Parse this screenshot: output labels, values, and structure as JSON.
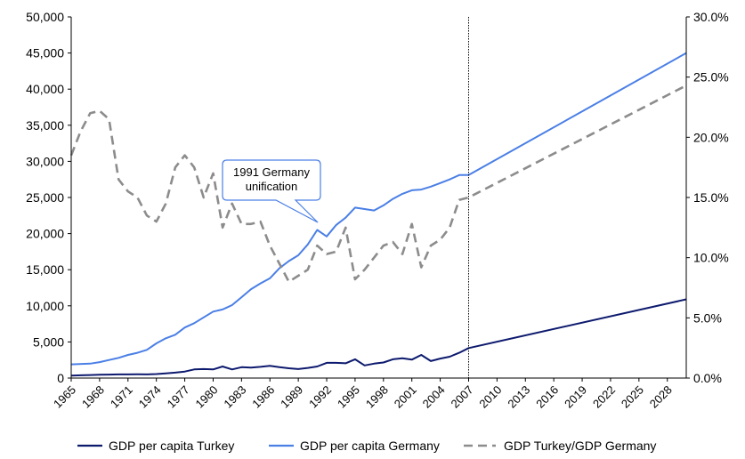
{
  "chart_data": {
    "type": "line",
    "x_ticks": [
      "1965",
      "1968",
      "1971",
      "1974",
      "1977",
      "1980",
      "1983",
      "1986",
      "1989",
      "1992",
      "1995",
      "1998",
      "2001",
      "2004",
      "2007",
      "2010",
      "2013",
      "2016",
      "2019",
      "2022",
      "2025",
      "2028"
    ],
    "x_range": [
      1965,
      2030
    ],
    "y_left": {
      "ticks": [
        "0",
        "5,000",
        "10,000",
        "15,000",
        "20,000",
        "25,000",
        "30,000",
        "35,000",
        "40,000",
        "45,000",
        "50,000"
      ],
      "range": [
        0,
        50000
      ]
    },
    "y_right": {
      "ticks": [
        "0.0%",
        "5.0%",
        "10.0%",
        "15.0%",
        "20.0%",
        "25.0%",
        "30.0%"
      ],
      "range": [
        0,
        30
      ]
    },
    "vertical_line_year": 2007,
    "annotation": {
      "lines": [
        "1991 Germany",
        "unification"
      ],
      "points_to_year": 1991
    },
    "legend_position": "bottom",
    "series": [
      {
        "name": "GDP per capita Turkey",
        "axis": "left",
        "color": "#0d1a6e",
        "style": "solid",
        "x": [
          1965,
          1966,
          1967,
          1968,
          1969,
          1970,
          1971,
          1972,
          1973,
          1974,
          1975,
          1976,
          1977,
          1978,
          1979,
          1980,
          1981,
          1982,
          1983,
          1984,
          1985,
          1986,
          1987,
          1988,
          1989,
          1990,
          1991,
          1992,
          1993,
          1994,
          1995,
          1996,
          1997,
          1998,
          1999,
          2000,
          2001,
          2002,
          2003,
          2004,
          2005,
          2006,
          2007,
          2030
        ],
        "values": [
          350,
          380,
          420,
          450,
          480,
          500,
          500,
          520,
          500,
          550,
          650,
          750,
          900,
          1200,
          1250,
          1200,
          1600,
          1200,
          1500,
          1450,
          1550,
          1700,
          1500,
          1350,
          1250,
          1400,
          1600,
          2100,
          2100,
          2050,
          2600,
          1750,
          2000,
          2150,
          2600,
          2750,
          2550,
          3200,
          2350,
          2700,
          2950,
          3500,
          4150,
          10900
        ]
      },
      {
        "name": "GDP per capita Germany",
        "axis": "left",
        "color": "#4a7fe6",
        "style": "solid",
        "x": [
          1965,
          1967,
          1968,
          1969,
          1970,
          1971,
          1972,
          1973,
          1974,
          1975,
          1976,
          1977,
          1978,
          1979,
          1980,
          1981,
          1982,
          1983,
          1984,
          1985,
          1986,
          1987,
          1988,
          1989,
          1990,
          1991,
          1992,
          1993,
          1994,
          1995,
          1996,
          1997,
          1998,
          1999,
          2000,
          2001,
          2002,
          2003,
          2004,
          2005,
          2006,
          2007,
          2030
        ],
        "values": [
          1900,
          2000,
          2200,
          2500,
          2800,
          3200,
          3500,
          3900,
          4800,
          5500,
          6000,
          7000,
          7600,
          8400,
          9200,
          9500,
          10100,
          11200,
          12300,
          13100,
          13800,
          15200,
          16200,
          17000,
          18500,
          20500,
          19600,
          21200,
          22200,
          23600,
          23400,
          23200,
          23900,
          24800,
          25500,
          26000,
          26100,
          26500,
          27000,
          27500,
          28100,
          28100,
          45000
        ]
      },
      {
        "name": "GDP Turkey/GDP Germany",
        "axis": "right",
        "color": "#8c8c8c",
        "style": "dashed",
        "x": [
          1965,
          1966,
          1967,
          1968,
          1969,
          1970,
          1971,
          1972,
          1973,
          1974,
          1975,
          1976,
          1977,
          1978,
          1979,
          1980,
          1981,
          1982,
          1983,
          1984,
          1985,
          1986,
          1987,
          1988,
          1989,
          1990,
          1991,
          1992,
          1993,
          1994,
          1995,
          1996,
          1997,
          1998,
          1999,
          2000,
          2001,
          2002,
          2003,
          2004,
          2005,
          2006,
          2007,
          2030
        ],
        "values": [
          18.5,
          20.5,
          22.0,
          22.2,
          21.5,
          16.5,
          15.5,
          15.0,
          13.5,
          13.0,
          14.5,
          17.5,
          18.5,
          17.5,
          15.0,
          17.0,
          12.5,
          14.5,
          12.8,
          12.8,
          13.0,
          11.0,
          9.5,
          8.0,
          8.5,
          9.0,
          11.0,
          10.3,
          10.5,
          12.5,
          8.2,
          9.0,
          10.0,
          11.0,
          11.3,
          10.3,
          12.8,
          9.2,
          11.0,
          11.5,
          12.5,
          14.8,
          15.0,
          24.3
        ]
      }
    ]
  }
}
